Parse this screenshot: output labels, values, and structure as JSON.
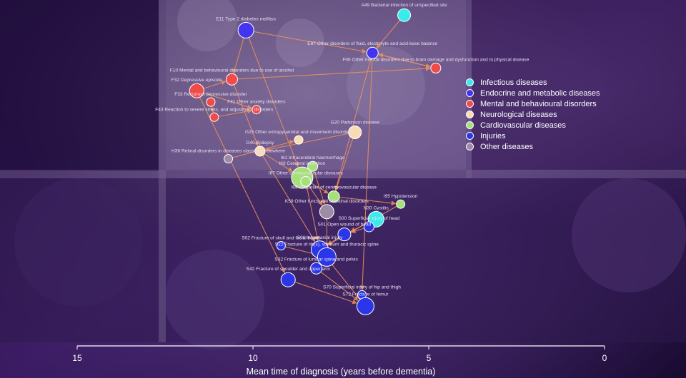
{
  "chart_data": {
    "type": "network-scatter",
    "xlabel": "Mean time of diagnosis (years before dementia)",
    "xlim": [
      15,
      0
    ],
    "xticks": [
      15,
      10,
      5,
      0
    ],
    "categories": [
      {
        "name": "Infectious diseases",
        "color": "#38ecec"
      },
      {
        "name": "Endocrine and metabolic diseases",
        "color": "#4433f0"
      },
      {
        "name": "Mental and behavioural disorders",
        "color": "#f24a48"
      },
      {
        "name": "Neurological diseases",
        "color": "#f9dcb4"
      },
      {
        "name": "Cardiovascular diseases",
        "color": "#a6e07a"
      },
      {
        "name": "Injuries",
        "color": "#2b36e8"
      },
      {
        "name": "Other diseases",
        "color": "#9e8ca6"
      }
    ],
    "nodes": [
      {
        "id": "A49",
        "label": "A49 Bacterial infection of unspecified site",
        "cat": 0,
        "x": 5.7,
        "y": 0.96,
        "r": 9
      },
      {
        "id": "E11",
        "label": "E11 Type 2 diabetes mellitus",
        "cat": 1,
        "x": 10.2,
        "y": 0.92,
        "r": 11
      },
      {
        "id": "E87",
        "label": "E87 Other disorders of fluid, electrolyte and acid-base balance",
        "cat": 1,
        "x": 6.6,
        "y": 0.86,
        "r": 8
      },
      {
        "id": "F06",
        "label": "F06 Other mental disorders due to brain damage and dysfunction and to physical disease",
        "cat": 2,
        "x": 4.8,
        "y": 0.82,
        "r": 7
      },
      {
        "id": "F10",
        "label": "F10 Mental and behavioural disorders due to use of alcohol",
        "cat": 2,
        "x": 10.6,
        "y": 0.79,
        "r": 8
      },
      {
        "id": "F32",
        "label": "F32 Depressive episode",
        "cat": 2,
        "x": 11.6,
        "y": 0.76,
        "r": 10
      },
      {
        "id": "F33",
        "label": "F33 Recurrent depressive disorder",
        "cat": 2,
        "x": 11.2,
        "y": 0.73,
        "r": 6
      },
      {
        "id": "F41",
        "label": "F41 Other anxiety disorders",
        "cat": 2,
        "x": 9.9,
        "y": 0.71,
        "r": 6
      },
      {
        "id": "F43",
        "label": "F43 Reaction to severe stress, and adjustment disorders",
        "cat": 2,
        "x": 11.1,
        "y": 0.69,
        "r": 6
      },
      {
        "id": "G20",
        "label": "G20 Parkinson disease",
        "cat": 3,
        "x": 7.1,
        "y": 0.65,
        "r": 9
      },
      {
        "id": "G25",
        "label": "G25 Other extrapyramidal and movement disorders",
        "cat": 3,
        "x": 8.7,
        "y": 0.63,
        "r": 6
      },
      {
        "id": "G40",
        "label": "G40 Epilepsy",
        "cat": 3,
        "x": 9.8,
        "y": 0.6,
        "r": 7
      },
      {
        "id": "H36",
        "label": "H36 Retinal disorders in diseases classified elsewhere",
        "cat": 6,
        "x": 10.7,
        "y": 0.58,
        "r": 6
      },
      {
        "id": "I61",
        "label": "I61 Intracerebral haemorrhage",
        "cat": 4,
        "x": 8.3,
        "y": 0.56,
        "r": 7
      },
      {
        "id": "I63",
        "label": "I63 Cerebral infarction",
        "cat": 4,
        "x": 8.6,
        "y": 0.53,
        "r": 15
      },
      {
        "id": "I67",
        "label": "I67 Other cerebrovascular diseases",
        "cat": 4,
        "x": 8.5,
        "y": 0.52,
        "r": 7
      },
      {
        "id": "I69",
        "label": "I69 Sequelae of cerebrovascular disease",
        "cat": 4,
        "x": 7.7,
        "y": 0.48,
        "r": 8
      },
      {
        "id": "I95",
        "label": "I95 Hypotension",
        "cat": 4,
        "x": 5.8,
        "y": 0.46,
        "r": 6
      },
      {
        "id": "K59",
        "label": "K59 Other functional intestinal disorders",
        "cat": 6,
        "x": 7.9,
        "y": 0.44,
        "r": 10
      },
      {
        "id": "N30",
        "label": "N30 Cystitis",
        "cat": 0,
        "x": 6.5,
        "y": 0.42,
        "r": 11
      },
      {
        "id": "S00",
        "label": "S00 Superficial injury of head",
        "cat": 5,
        "x": 6.7,
        "y": 0.4,
        "r": 7
      },
      {
        "id": "S01",
        "label": "S01 Open wound of head",
        "cat": 5,
        "x": 7.4,
        "y": 0.38,
        "r": 9
      },
      {
        "id": "S02",
        "label": "S02 Fracture of skull and facial bones",
        "cat": 5,
        "x": 9.2,
        "y": 0.35,
        "r": 6
      },
      {
        "id": "S06",
        "label": "S06 Intracranial injury",
        "cat": 5,
        "x": 8.1,
        "y": 0.34,
        "r": 12
      },
      {
        "id": "S22",
        "label": "S22 Fracture of rib(s), sternum and thoracic spine",
        "cat": 5,
        "x": 7.9,
        "y": 0.32,
        "r": 13
      },
      {
        "id": "S32",
        "label": "S32 Fracture of lumbar spine and pelvis",
        "cat": 5,
        "x": 8.2,
        "y": 0.29,
        "r": 8
      },
      {
        "id": "S42",
        "label": "S42 Fracture of shoulder and upper arm",
        "cat": 5,
        "x": 9.0,
        "y": 0.26,
        "r": 10
      },
      {
        "id": "S70",
        "label": "S70 Superficial injury of hip and thigh",
        "cat": 5,
        "x": 6.9,
        "y": 0.22,
        "r": 6
      },
      {
        "id": "S72",
        "label": "S72 Fracture of femur",
        "cat": 5,
        "x": 6.8,
        "y": 0.19,
        "r": 12
      }
    ],
    "edges": [
      [
        "E11",
        "E87"
      ],
      [
        "E11",
        "F10"
      ],
      [
        "E11",
        "I63"
      ],
      [
        "F10",
        "F06"
      ],
      [
        "F10",
        "G40"
      ],
      [
        "F32",
        "F41"
      ],
      [
        "F33",
        "F43"
      ],
      [
        "F43",
        "F41"
      ],
      [
        "F32",
        "F10"
      ],
      [
        "E87",
        "F06"
      ],
      [
        "E87",
        "I69"
      ],
      [
        "G20",
        "I69"
      ],
      [
        "G40",
        "I63"
      ],
      [
        "G40",
        "S06"
      ],
      [
        "H36",
        "G25"
      ],
      [
        "I63",
        "I69"
      ],
      [
        "I67",
        "S06"
      ],
      [
        "I61",
        "K59"
      ],
      [
        "I69",
        "I95"
      ],
      [
        "K59",
        "S22"
      ],
      [
        "S01",
        "S06"
      ],
      [
        "S02",
        "S22"
      ],
      [
        "S06",
        "S72"
      ],
      [
        "S22",
        "S32"
      ],
      [
        "S32",
        "S72"
      ],
      [
        "S42",
        "S72"
      ],
      [
        "S00",
        "S01"
      ],
      [
        "N30",
        "S01"
      ],
      [
        "E87",
        "S70"
      ],
      [
        "F32",
        "S42"
      ],
      [
        "F06",
        "E87"
      ],
      [
        "I95",
        "S06"
      ],
      [
        "A49",
        "E87"
      ],
      [
        "G20",
        "G40"
      ],
      [
        "I67",
        "K59"
      ]
    ]
  }
}
